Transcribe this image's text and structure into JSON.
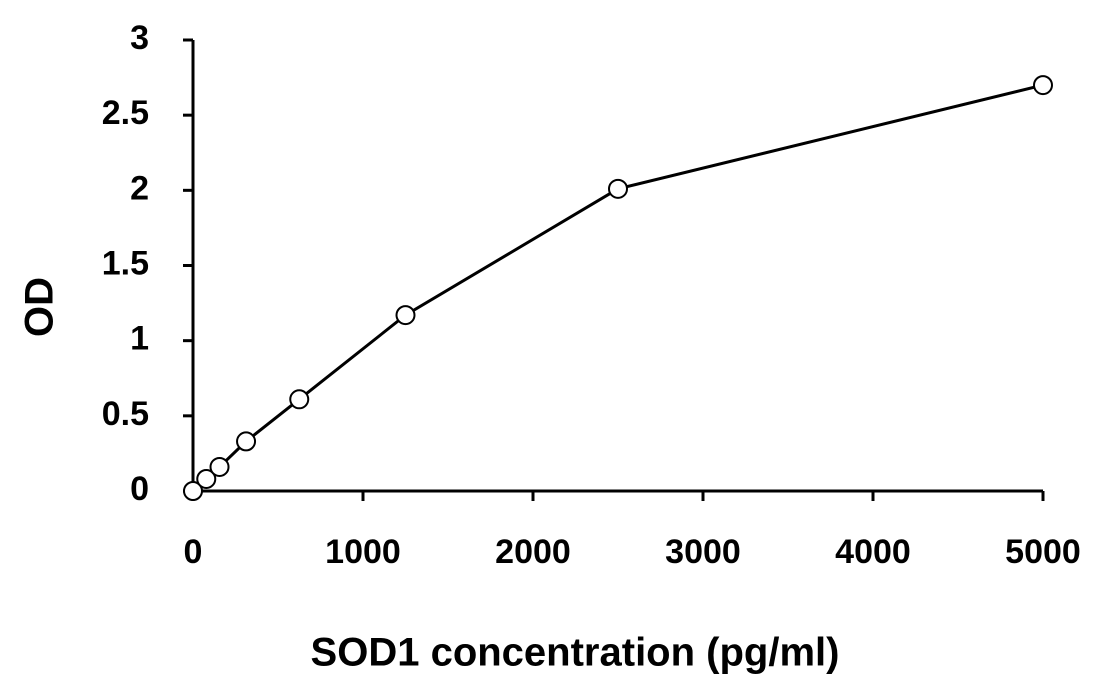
{
  "chart_data": {
    "type": "line",
    "x_label": "SOD1 concentration (pg/ml)",
    "y_label": "OD",
    "x": [
      0,
      78,
      156,
      312,
      625,
      1250,
      2500,
      5000
    ],
    "series": [
      {
        "name": "OD",
        "color": "#000000",
        "values": [
          0,
          0.08,
          0.16,
          0.33,
          0.61,
          1.17,
          2.01,
          2.7
        ]
      }
    ],
    "xlim": [
      0,
      5000
    ],
    "xticks": [
      0,
      1000,
      2000,
      3000,
      4000,
      5000
    ],
    "ylim": [
      0,
      3
    ],
    "yticks": [
      0,
      0.5,
      1,
      1.5,
      2,
      2.5,
      3
    ],
    "grid": false,
    "marker": "circle"
  }
}
